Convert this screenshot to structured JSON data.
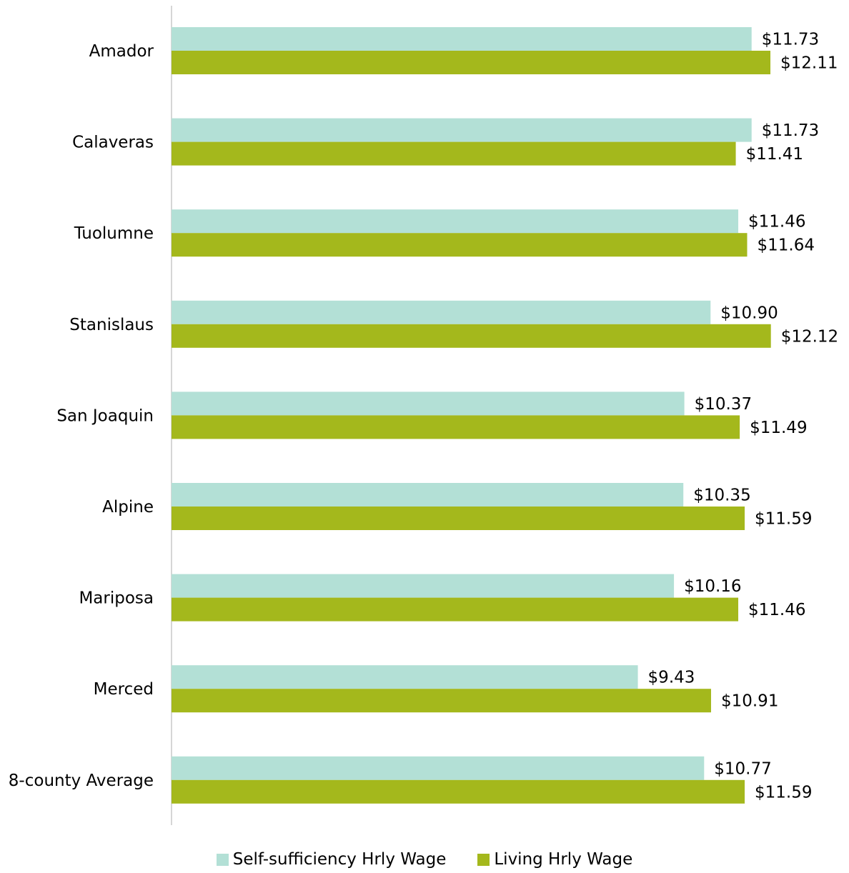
{
  "chart_data": {
    "type": "bar",
    "orientation": "horizontal",
    "categories": [
      "Amador",
      "Calaveras",
      "Tuolumne",
      "Stanislaus",
      "San Joaquin",
      "Alpine",
      "Mariposa",
      "Merced",
      "8-county Average"
    ],
    "series": [
      {
        "name": "Self-sufficiency Hrly Wage",
        "color": "#b3e0d6",
        "values": [
          11.73,
          11.73,
          11.46,
          10.9,
          10.37,
          10.35,
          10.16,
          9.43,
          10.77
        ],
        "labels": [
          "$11.73",
          "$11.73",
          "$11.46",
          "$10.90",
          "$10.37",
          "$10.35",
          "$10.16",
          "$9.43",
          "$10.77"
        ]
      },
      {
        "name": "Living Hrly Wage",
        "color": "#a4b81c",
        "values": [
          12.11,
          11.41,
          11.64,
          12.12,
          11.49,
          11.59,
          11.46,
          10.91,
          11.59
        ],
        "labels": [
          "$12.11",
          "$11.41",
          "$11.64",
          "$12.12",
          "$11.49",
          "$11.59",
          "$11.46",
          "$10.91",
          "$11.59"
        ]
      }
    ],
    "xlim": [
      0,
      13
    ],
    "grid": false,
    "legend_position": "bottom",
    "title": "",
    "xlabel": "",
    "ylabel": ""
  },
  "legend": {
    "items": [
      {
        "label": "Self-sufficiency Hrly Wage",
        "color": "#b3e0d6"
      },
      {
        "label": "Living Hrly Wage",
        "color": "#a4b81c"
      }
    ]
  }
}
